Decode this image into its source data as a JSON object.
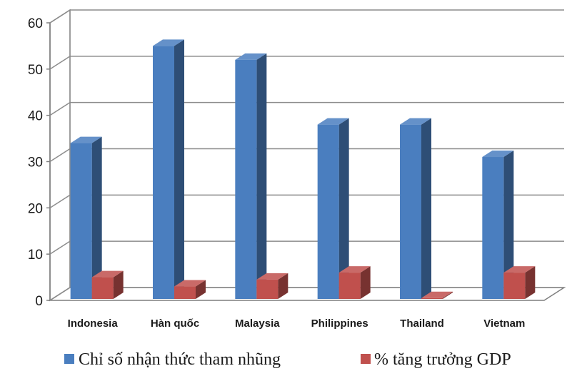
{
  "chart_data": {
    "type": "bar",
    "style": "3d-clustered-column",
    "categories": [
      "Indonesia",
      "Hàn quốc",
      "Malaysia",
      "Philippines",
      "Thailand",
      "Vietnam"
    ],
    "series": [
      {
        "name": "Chỉ số nhận thức tham nhũng",
        "color": "#4a7ebf",
        "values": [
          34,
          55,
          52,
          38,
          38,
          31
        ]
      },
      {
        "name": "% tăng trưởng GDP",
        "color": "#c0504d",
        "values": [
          5,
          3,
          4.5,
          6,
          0.5,
          6
        ]
      }
    ],
    "ylim": [
      0,
      60
    ],
    "yticks": [
      "0",
      "10",
      "20",
      "30",
      "40",
      "50",
      "60"
    ],
    "grid": true,
    "legend_position": "bottom"
  }
}
